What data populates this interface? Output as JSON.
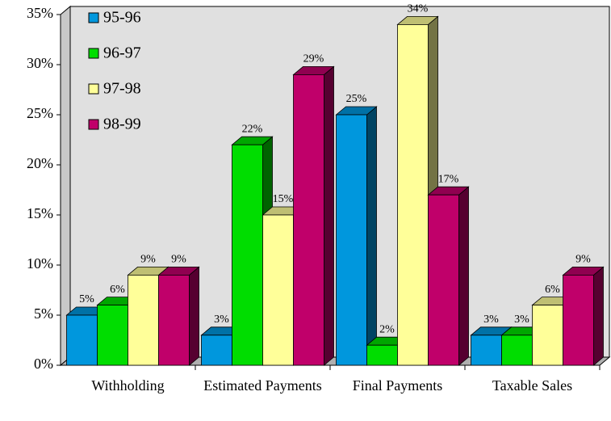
{
  "chart_data": {
    "type": "bar3d",
    "categories": [
      "Withholding",
      "Estimated Payments",
      "Final Payments",
      "Taxable Sales"
    ],
    "series": [
      {
        "name": "95-96",
        "color": "#0097dd",
        "values": [
          5,
          3,
          25,
          3
        ],
        "value_labels": [
          "5%",
          "3%",
          "25%",
          "3%"
        ]
      },
      {
        "name": "96-97",
        "color": "#00dd00",
        "values": [
          6,
          22,
          2,
          3
        ],
        "value_labels": [
          "6%",
          "22%",
          "2%",
          "3%"
        ]
      },
      {
        "name": "97-98",
        "color": "#ffff99",
        "values": [
          9,
          15,
          34,
          6
        ],
        "value_labels": [
          "9%",
          "15%",
          "34%",
          "6%"
        ]
      },
      {
        "name": "98-99",
        "color": "#c0006a",
        "values": [
          9,
          29,
          17,
          9
        ],
        "value_labels": [
          "9%",
          "29%",
          "17%",
          "9%"
        ]
      }
    ],
    "ylim": [
      0,
      35
    ],
    "yticks": [
      {
        "value": 0,
        "label": "0%"
      },
      {
        "value": 5,
        "label": "5%"
      },
      {
        "value": 10,
        "label": "10%"
      },
      {
        "value": 15,
        "label": "15%"
      },
      {
        "value": 20,
        "label": "20%"
      },
      {
        "value": 25,
        "label": "25%"
      },
      {
        "value": 30,
        "label": "30%"
      },
      {
        "value": 35,
        "label": "35%"
      }
    ],
    "legend": "top-left",
    "grid": false
  }
}
